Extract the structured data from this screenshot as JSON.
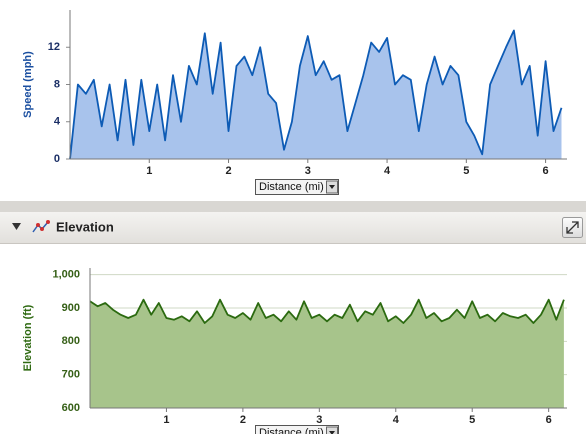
{
  "chart_data": [
    {
      "type": "area",
      "ylabel": "Speed (mph)",
      "x_selector": "Distance (mi)",
      "color": "#0d5bb5",
      "fill": "#a8c3ec",
      "xlim": [
        0,
        6.27
      ],
      "xticks": [
        1,
        2,
        3,
        4,
        5,
        6
      ],
      "ylim": [
        0,
        16
      ],
      "yticks": [
        0,
        4,
        8,
        12
      ],
      "grid": false,
      "x": [
        0,
        0.1,
        0.2,
        0.3,
        0.4,
        0.5,
        0.6,
        0.7,
        0.8,
        0.9,
        1,
        1.1,
        1.2,
        1.3,
        1.4,
        1.5,
        1.6,
        1.7,
        1.8,
        1.9,
        2,
        2.1,
        2.2,
        2.3,
        2.4,
        2.5,
        2.6,
        2.7,
        2.8,
        2.9,
        3,
        3.1,
        3.2,
        3.3,
        3.4,
        3.5,
        3.6,
        3.7,
        3.8,
        3.9,
        4,
        4.1,
        4.2,
        4.3,
        4.4,
        4.5,
        4.6,
        4.7,
        4.8,
        4.9,
        5,
        5.1,
        5.2,
        5.3,
        5.4,
        5.5,
        5.6,
        5.7,
        5.8,
        5.9,
        6,
        6.1,
        6.2
      ],
      "values": [
        0,
        8,
        7,
        8.5,
        3.5,
        8,
        2,
        8.5,
        1.5,
        8.5,
        3,
        8,
        2,
        9,
        4,
        10,
        8,
        13.5,
        7,
        12.5,
        3,
        10,
        11,
        9,
        12,
        7,
        6,
        1,
        4,
        10,
        13.2,
        9,
        10.5,
        8.5,
        9,
        3,
        6,
        9,
        12.5,
        11.5,
        13,
        8,
        9,
        8.5,
        3,
        8,
        11,
        8,
        10,
        9,
        4,
        2.5,
        0.5,
        8,
        10,
        12,
        13.8,
        8,
        10,
        2.5,
        10.5,
        3,
        5.5
      ]
    },
    {
      "type": "area",
      "title": "Elevation",
      "ylabel": "Elevation (ft)",
      "x_selector": "Distance (mi)",
      "color": "#2b6a10",
      "fill": "#a7c48b",
      "xlim": [
        0,
        6.24
      ],
      "xticks": [
        1,
        2,
        3,
        4,
        5,
        6
      ],
      "ylim": [
        600,
        1020
      ],
      "yticks": [
        600,
        700,
        800,
        900,
        {
          "value": 1000,
          "label": "1,000"
        }
      ],
      "grid": true,
      "x": [
        0,
        0.1,
        0.2,
        0.3,
        0.4,
        0.5,
        0.6,
        0.7,
        0.8,
        0.9,
        1,
        1.1,
        1.2,
        1.3,
        1.4,
        1.5,
        1.6,
        1.7,
        1.8,
        1.9,
        2,
        2.1,
        2.2,
        2.3,
        2.4,
        2.5,
        2.6,
        2.7,
        2.8,
        2.9,
        3,
        3.1,
        3.2,
        3.3,
        3.4,
        3.5,
        3.6,
        3.7,
        3.8,
        3.9,
        4,
        4.1,
        4.2,
        4.3,
        4.4,
        4.5,
        4.6,
        4.7,
        4.8,
        4.9,
        5,
        5.1,
        5.2,
        5.3,
        5.4,
        5.5,
        5.6,
        5.7,
        5.8,
        5.9,
        6,
        6.1,
        6.2
      ],
      "values": [
        920,
        905,
        915,
        895,
        880,
        870,
        880,
        925,
        880,
        915,
        870,
        865,
        875,
        860,
        890,
        855,
        875,
        925,
        880,
        870,
        885,
        865,
        915,
        870,
        880,
        860,
        890,
        865,
        920,
        870,
        880,
        860,
        880,
        870,
        910,
        860,
        890,
        880,
        915,
        860,
        875,
        855,
        880,
        925,
        870,
        885,
        860,
        870,
        895,
        870,
        920,
        870,
        880,
        860,
        885,
        875,
        870,
        880,
        855,
        880,
        925,
        865,
        925
      ]
    }
  ]
}
